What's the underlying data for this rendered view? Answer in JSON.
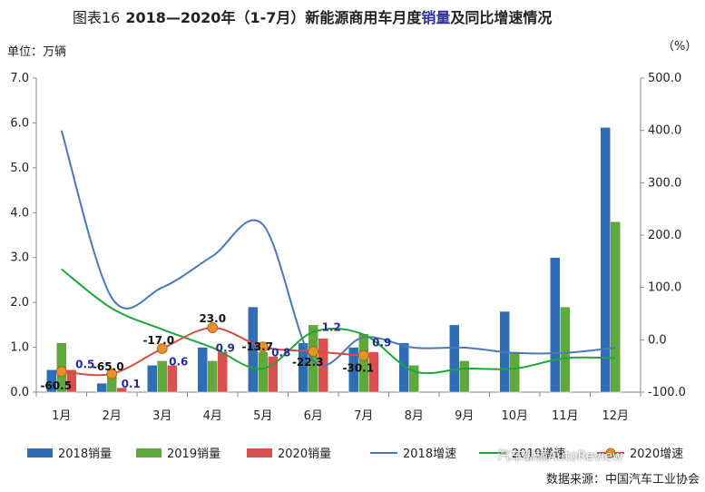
{
  "title": {
    "prefix": "图表16",
    "main": "2018—2020年（1-7月）新能源商用车月度",
    "highlight": "销量",
    "suffix": "及同比增速情况"
  },
  "unit_left": "单位：万辆",
  "unit_right": "（%）",
  "source": "数据来源：中国汽车工业协会",
  "watermark": "汽车纵横AutoReview",
  "colors": {
    "s2018": "#2f6db5",
    "s2019": "#5fa83b",
    "s2020": "#d9504e",
    "g2018": "#4a78b8",
    "g2019": "#1fa53c",
    "g2020": "#cf4f43",
    "marker2020": "#e8902a",
    "label2020": "#1f2e8c"
  },
  "chart_data": {
    "type": "bar",
    "categories": [
      "1月",
      "2月",
      "3月",
      "4月",
      "5月",
      "6月",
      "7月",
      "8月",
      "9月",
      "10月",
      "11月",
      "12月"
    ],
    "ylim": [
      0,
      7
    ],
    "yticks": [
      "0.0",
      "1.0",
      "2.0",
      "3.0",
      "4.0",
      "5.0",
      "6.0",
      "7.0"
    ],
    "y2lim": [
      -100,
      500
    ],
    "y2ticks": [
      "-100.0",
      "0.0",
      "100.0",
      "200.0",
      "300.0",
      "400.0",
      "500.0"
    ],
    "series": [
      {
        "name": "2018销量",
        "values": [
          0.5,
          0.2,
          0.6,
          1.0,
          1.9,
          1.1,
          1.0,
          1.1,
          1.5,
          1.8,
          3.0,
          5.9
        ]
      },
      {
        "name": "2019销量",
        "values": [
          1.1,
          0.4,
          0.7,
          0.7,
          0.9,
          1.5,
          1.3,
          0.6,
          0.7,
          0.9,
          1.9,
          3.8
        ]
      },
      {
        "name": "2020销量",
        "values": [
          0.5,
          0.1,
          0.6,
          0.9,
          0.8,
          1.2,
          0.9,
          null,
          null,
          null,
          null,
          null
        ]
      }
    ],
    "growth_series": [
      {
        "name": "2018增速",
        "values": [
          400,
          80,
          100,
          160,
          220,
          -40,
          5,
          -15,
          -15,
          -25,
          -25,
          -15
        ]
      },
      {
        "name": "2019增速",
        "values": [
          135,
          60,
          20,
          -15,
          -55,
          15,
          10,
          -60,
          -55,
          -55,
          -35,
          -35
        ]
      },
      {
        "name": "2020增速",
        "values": [
          -60.5,
          -65.0,
          -17.0,
          23.0,
          -13.7,
          -22.3,
          -30.1,
          null,
          null,
          null,
          null,
          null
        ]
      }
    ],
    "data_labels_2020_sales": [
      "0.5",
      "0.1",
      "0.6",
      "0.9",
      "0.8",
      "1.2",
      "0.9"
    ],
    "data_labels_2020_growth": [
      "-60.5",
      "-65.0",
      "-17.0",
      "23.0",
      "-13.7",
      "-22.3",
      "-30.1"
    ]
  }
}
